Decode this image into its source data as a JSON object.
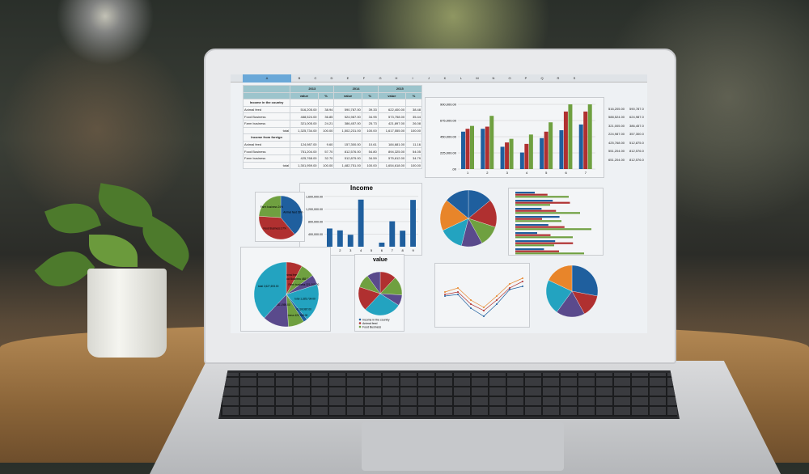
{
  "table": {
    "years": [
      "2013",
      "2014",
      "2015"
    ],
    "sub": [
      "value",
      "%"
    ],
    "sections": [
      {
        "title": "Income in the country",
        "rows": [
          [
            "Animal feed",
            "516,205.00",
            "38.94",
            "590,787.00",
            "39.33",
            "622,400.00",
            "38.48"
          ],
          [
            "Food Business",
            "488,524.00",
            "36.85",
            "524,987.00",
            "34.95",
            "573,758.00",
            "35.44"
          ],
          [
            "Farm business",
            "321,005.00",
            "24.21",
            "386,457.00",
            "25.73",
            "421,897.00",
            "26.08"
          ],
          [
            "total",
            "1,325,734.00",
            "100.00",
            "1,502,231.00",
            "100.00",
            "1,617,555.00",
            "100.00"
          ]
        ]
      },
      {
        "title": "Income from foreign",
        "rows": [
          [
            "Animal feed",
            "124,987.00",
            "9.60",
            "157,300.00",
            "10.61",
            "184,681.00",
            "11.16"
          ],
          [
            "Food Business",
            "751,204.00",
            "57.70",
            "812,576.00",
            "54.80",
            "894,325.00",
            "54.05"
          ],
          [
            "Farm business",
            "425,768.00",
            "32.70",
            "512,875.00",
            "34.59",
            "575,612.00",
            "34.79"
          ],
          [
            "total",
            "1,301,959.00",
            "100.00",
            "1,482,751.00",
            "100.00",
            "1,654,618.00",
            "100.00"
          ]
        ]
      }
    ],
    "columns": [
      "A",
      "B",
      "C",
      "D",
      "E",
      "F",
      "G",
      "H",
      "I",
      "J",
      "K",
      "L",
      "M",
      "N",
      "O",
      "P",
      "Q",
      "R",
      "S"
    ]
  },
  "side_values": [
    [
      "516,205.00",
      "590,787.0"
    ],
    [
      "588,524.00",
      "624,987.0"
    ],
    [
      "321,005.00",
      "386,457.0"
    ],
    [
      "224,987.00",
      "357,300.0"
    ],
    [
      "425,768.00",
      "512,875.0"
    ],
    [
      "551,204.00",
      "812,576.0"
    ],
    [
      "651,204.00",
      "812,576.0"
    ]
  ],
  "colors": {
    "blue": "#1f5f9e",
    "red": "#b03030",
    "green": "#6fa040",
    "purple": "#5a4a8c",
    "teal": "#23a3c0",
    "orange": "#e8852a"
  },
  "chart_data": [
    {
      "type": "bar",
      "categories": [
        "1",
        "2",
        "3",
        "4",
        "5",
        "6",
        "7"
      ],
      "yticks": [
        "900,000.00",
        "675,000.00",
        "450,000.00",
        "225,000.00",
        ".00"
      ],
      "ylim": [
        0,
        900000
      ],
      "series": [
        {
          "values": [
            520000,
            560000,
            310000,
            230000,
            430000,
            540000,
            620000
          ]
        },
        {
          "values": [
            560000,
            590000,
            370000,
            350000,
            520000,
            800000,
            800000
          ]
        },
        {
          "values": [
            600000,
            740000,
            420000,
            480000,
            650000,
            900000,
            900000
          ]
        }
      ]
    },
    {
      "type": "bar",
      "title": "Income",
      "categories": [
        "1",
        "2",
        "3",
        "4",
        "5",
        "6",
        "7",
        "8",
        "9"
      ],
      "yticks": [
        "1,600,000.00",
        "1,200,000.00",
        "800,000.00",
        "400,000.00"
      ],
      "ylim": [
        0,
        1700000
      ],
      "values": [
        580000,
        520000,
        380000,
        1500000,
        0,
        130000,
        810000,
        510000,
        1490000
      ]
    },
    {
      "type": "pie",
      "labels": [
        "Animal feed 39%",
        "Food Business 37%",
        "Farm business 24%"
      ],
      "values": [
        39,
        37,
        24
      ]
    },
    {
      "type": "pie",
      "labels": [
        "Animal feed",
        "Food Business 488,524.00",
        "Farm business 321,005.00",
        "total 1,325,734.00",
        "Animal feed 124,987.00",
        "Farm business 425,768.00",
        "total 1,301,959.00",
        "total 2,627,693.00"
      ],
      "values": [
        8,
        7,
        5,
        19,
        2,
        8,
        13,
        38
      ]
    },
    {
      "type": "pie",
      "title": "value",
      "legend": [
        "Income in the country",
        "Animal feed",
        "Food Business"
      ],
      "values": [
        12,
        14,
        8,
        28,
        18,
        10,
        10
      ]
    },
    {
      "type": "pie",
      "values": [
        14,
        16,
        12,
        12,
        14,
        18,
        14
      ]
    },
    {
      "type": "pie",
      "values": [
        28,
        14,
        18,
        22,
        18
      ]
    }
  ]
}
